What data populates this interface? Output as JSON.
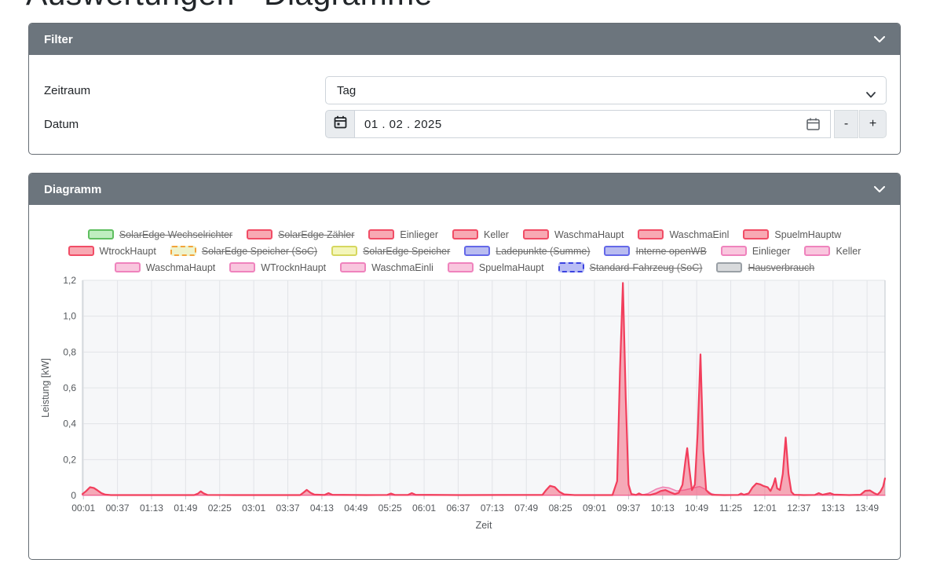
{
  "page": {
    "title": "Auswertungen - Diagramme"
  },
  "filter_panel": {
    "title": "Filter",
    "zeitraum": {
      "label": "Zeitraum",
      "value": "Tag"
    },
    "datum": {
      "label": "Datum",
      "value": "01 . 02 . 2025",
      "decrement_label": "-",
      "increment_label": "+"
    }
  },
  "diagram_panel": {
    "title": "Diagramm",
    "legend_rows": [
      [
        {
          "label": "SolarEdge Wechselrichter",
          "color": "green",
          "struck": true
        },
        {
          "label": "SolarEdge Zähler",
          "color": "red",
          "struck": true
        },
        {
          "label": "Einlieger",
          "color": "red",
          "struck": false
        },
        {
          "label": "Keller",
          "color": "red",
          "struck": false
        },
        {
          "label": "WaschmaHaupt",
          "color": "red",
          "struck": false
        },
        {
          "label": "WaschmaEinl",
          "color": "red",
          "struck": false
        },
        {
          "label": "SpuelmHauptw",
          "color": "red",
          "struck": false
        }
      ],
      [
        {
          "label": "WtrockHaupt",
          "color": "red",
          "struck": false
        },
        {
          "label": "SolarEdge Speicher (SoC)",
          "color": "soc_yellow",
          "struck": true,
          "dashed": true
        },
        {
          "label": "SolarEdge Speicher",
          "color": "yellow",
          "struck": true
        },
        {
          "label": "Ladepunkte (Summe)",
          "color": "blue",
          "struck": true
        },
        {
          "label": "Interne openWB",
          "color": "blue",
          "struck": true
        },
        {
          "label": "Einlieger",
          "color": "pink",
          "struck": false
        },
        {
          "label": "Keller",
          "color": "pink",
          "struck": false
        }
      ],
      [
        {
          "label": "WaschmaHaupt",
          "color": "pink",
          "struck": false
        },
        {
          "label": "WTrocknHaupt",
          "color": "pink",
          "struck": false
        },
        {
          "label": "WaschmaEinli",
          "color": "pink",
          "struck": false
        },
        {
          "label": "SpuelmaHaupt",
          "color": "pink",
          "struck": false
        },
        {
          "label": "Standard-Fahrzeug (SoC)",
          "color": "soc_blue",
          "struck": true,
          "dashed": true
        },
        {
          "label": "Hausverbrauch",
          "color": "gray",
          "struck": true
        }
      ]
    ],
    "palette": {
      "green": {
        "border": "#5fbf60",
        "fill": "#bfeec0"
      },
      "red": {
        "border": "#f14d66",
        "fill": "#f8a9b3"
      },
      "soc_yellow": {
        "border": "#f3a43a",
        "fill": "#eef3cd"
      },
      "yellow": {
        "border": "#d6d75f",
        "fill": "#f4f6ba"
      },
      "blue": {
        "border": "#6468e8",
        "fill": "#b9bcf0"
      },
      "soc_blue": {
        "border": "#3b43e0",
        "fill": "#b9bdf5"
      },
      "pink": {
        "border": "#ef83bd",
        "fill": "#f9c6de"
      },
      "gray": {
        "border": "#9aa0a6",
        "fill": "#d8dadc"
      }
    }
  },
  "chart_data": {
    "type": "area",
    "title": "",
    "xlabel": "Zeit",
    "ylabel": "Leistung [kW]",
    "x_ticks": [
      "00:01",
      "00:37",
      "01:13",
      "01:49",
      "02:25",
      "03:01",
      "03:37",
      "04:13",
      "04:49",
      "05:25",
      "06:01",
      "06:37",
      "07:13",
      "07:49",
      "08:25",
      "09:01",
      "09:37",
      "10:13",
      "10:49",
      "11:25",
      "12:01",
      "12:37",
      "13:13",
      "13:49"
    ],
    "y_ticks": [
      {
        "label": "1,2",
        "value": 1.2
      },
      {
        "label": "1,0",
        "value": 1.0
      },
      {
        "label": "0,8",
        "value": 0.8
      },
      {
        "label": "0,6",
        "value": 0.6
      },
      {
        "label": "0,4",
        "value": 0.4
      },
      {
        "label": "0,2",
        "value": 0.2
      },
      {
        "label": "0",
        "value": 0.0
      }
    ],
    "ylim": [
      0,
      1.2
    ],
    "x_range_minutes": [
      0,
      848
    ],
    "grid": true,
    "legend_position": "top",
    "series": [
      {
        "name": "pink-area-series",
        "stroke": "#f07fb0",
        "fill": "rgba(240,127,176,0.35)",
        "stroke_width": 1.5,
        "points": [
          [
            0,
            0.001
          ],
          [
            590,
            0.001
          ],
          [
            598,
            0.012
          ],
          [
            606,
            0.035
          ],
          [
            613,
            0.047
          ],
          [
            620,
            0.042
          ],
          [
            628,
            0.025
          ],
          [
            636,
            0.03
          ],
          [
            644,
            0.04
          ],
          [
            652,
            0.05
          ],
          [
            658,
            0.035
          ],
          [
            664,
            0.012
          ],
          [
            670,
            0.002
          ],
          [
            848,
            0.001
          ]
        ]
      },
      {
        "name": "red-area-series",
        "stroke": "#f23e5c",
        "fill": "rgba(242,62,92,0.42)",
        "stroke_width": 2.2,
        "points": [
          [
            0,
            0.008
          ],
          [
            4,
            0.025
          ],
          [
            8,
            0.046
          ],
          [
            12,
            0.042
          ],
          [
            16,
            0.028
          ],
          [
            20,
            0.013
          ],
          [
            24,
            0.005
          ],
          [
            30,
            0.002
          ],
          [
            118,
            0.002
          ],
          [
            122,
            0.01
          ],
          [
            125,
            0.023
          ],
          [
            128,
            0.012
          ],
          [
            132,
            0.003
          ],
          [
            160,
            0.002
          ],
          [
            230,
            0.002
          ],
          [
            234,
            0.018
          ],
          [
            237,
            0.031
          ],
          [
            241,
            0.015
          ],
          [
            245,
            0.005
          ],
          [
            256,
            0.003
          ],
          [
            260,
            0.013
          ],
          [
            264,
            0.004
          ],
          [
            300,
            0.002
          ],
          [
            322,
            0.003
          ],
          [
            326,
            0.011
          ],
          [
            330,
            0.003
          ],
          [
            344,
            0.003
          ],
          [
            348,
            0.013
          ],
          [
            352,
            0.004
          ],
          [
            400,
            0.002
          ],
          [
            486,
            0.003
          ],
          [
            490,
            0.03
          ],
          [
            494,
            0.054
          ],
          [
            499,
            0.047
          ],
          [
            504,
            0.02
          ],
          [
            509,
            0.006
          ],
          [
            520,
            0.002
          ],
          [
            560,
            0.002
          ],
          [
            565,
            0.08
          ],
          [
            568,
            0.7
          ],
          [
            571,
            1.185
          ],
          [
            574,
            0.55
          ],
          [
            577,
            0.06
          ],
          [
            580,
            0.008
          ],
          [
            585,
            0.003
          ],
          [
            588,
            0.012
          ],
          [
            591,
            0.004
          ],
          [
            600,
            0.003
          ],
          [
            606,
            0.012
          ],
          [
            611,
            0.025
          ],
          [
            616,
            0.03
          ],
          [
            621,
            0.018
          ],
          [
            626,
            0.008
          ],
          [
            630,
            0.015
          ],
          [
            634,
            0.06
          ],
          [
            637,
            0.19
          ],
          [
            639,
            0.264
          ],
          [
            641,
            0.16
          ],
          [
            644,
            0.03
          ],
          [
            647,
            0.06
          ],
          [
            650,
            0.35
          ],
          [
            653,
            0.787
          ],
          [
            656,
            0.25
          ],
          [
            659,
            0.03
          ],
          [
            662,
            0.014
          ],
          [
            665,
            0.004
          ],
          [
            678,
            0.002
          ],
          [
            693,
            0.003
          ],
          [
            696,
            0.011
          ],
          [
            699,
            0.004
          ],
          [
            704,
            0.012
          ],
          [
            708,
            0.045
          ],
          [
            712,
            0.067
          ],
          [
            716,
            0.062
          ],
          [
            720,
            0.052
          ],
          [
            724,
            0.046
          ],
          [
            727,
            0.025
          ],
          [
            730,
            0.06
          ],
          [
            732,
            0.096
          ],
          [
            734,
            0.04
          ],
          [
            737,
            0.03
          ],
          [
            740,
            0.12
          ],
          [
            743,
            0.323
          ],
          [
            746,
            0.12
          ],
          [
            749,
            0.02
          ],
          [
            752,
            0.004
          ],
          [
            762,
            0.002
          ],
          [
            774,
            0.003
          ],
          [
            778,
            0.013
          ],
          [
            782,
            0.004
          ],
          [
            790,
            0.013
          ],
          [
            794,
            0.005
          ],
          [
            810,
            0.002
          ],
          [
            822,
            0.004
          ],
          [
            827,
            0.026
          ],
          [
            832,
            0.028
          ],
          [
            837,
            0.012
          ],
          [
            840,
            0.005
          ],
          [
            843,
            0.02
          ],
          [
            846,
            0.05
          ],
          [
            848,
            0.095
          ]
        ]
      }
    ],
    "style": {
      "plot_bg": "#f6f7f9",
      "grid_color": "#e2e4e8",
      "axis_border_color": "#c2c7cd",
      "tick_label_color": "#54585c"
    }
  }
}
